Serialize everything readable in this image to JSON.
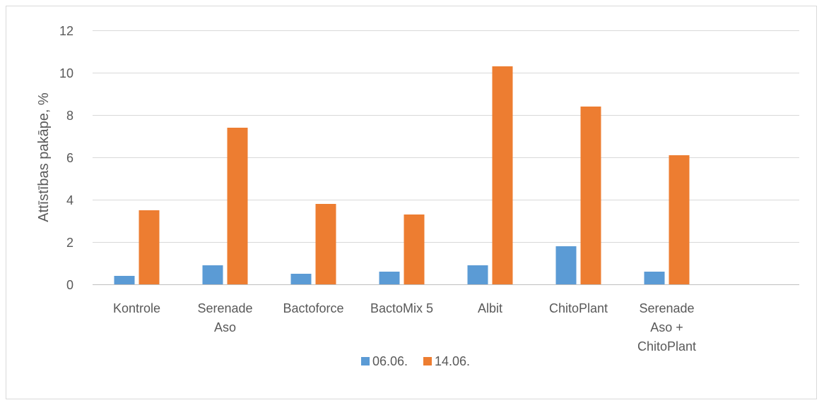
{
  "chart_data": {
    "type": "bar",
    "title": "",
    "xlabel": "",
    "ylabel": "Attīstības pakāpe, %",
    "ylim": [
      0,
      12
    ],
    "yticks": [
      0,
      2,
      4,
      6,
      8,
      10,
      12
    ],
    "grid": true,
    "legend_position": "bottom",
    "categories": [
      [
        "Kontrole"
      ],
      [
        "Serenade",
        "Aso"
      ],
      [
        "Bactoforce"
      ],
      [
        "BactoMix 5"
      ],
      [
        "Albit"
      ],
      [
        "ChitoPlant"
      ],
      [
        "Serenade",
        "Aso +",
        "ChitoPlant"
      ],
      [
        ""
      ]
    ],
    "series": [
      {
        "name": "06.06.",
        "color": "#5b9bd5",
        "values": [
          0.4,
          0.9,
          0.5,
          0.6,
          0.9,
          1.8,
          0.6,
          null
        ]
      },
      {
        "name": "14.06.",
        "color": "#ed7d31",
        "values": [
          3.5,
          7.4,
          3.8,
          3.3,
          10.3,
          8.4,
          6.1,
          null
        ]
      }
    ]
  }
}
